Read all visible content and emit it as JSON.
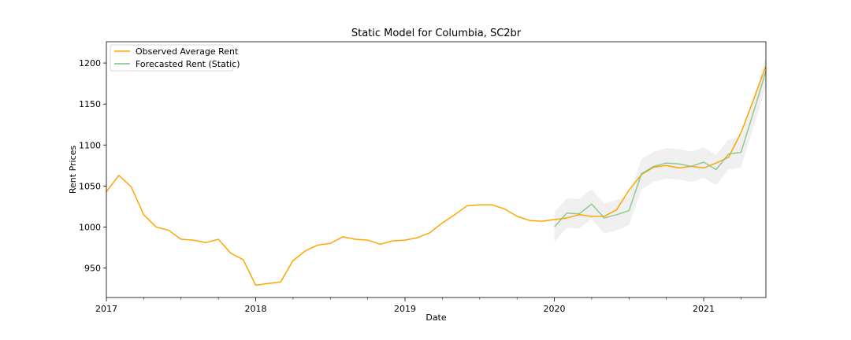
{
  "chart_data": {
    "type": "line",
    "title": "Static Model for Columbia, SC2br",
    "xlabel": "Date",
    "ylabel": "Rent Prices",
    "xlim": [
      "2017-01",
      "2021-06"
    ],
    "ylim": [
      914,
      1226
    ],
    "y_ticks": [
      950,
      1000,
      1050,
      1100,
      1150,
      1200
    ],
    "x_ticks": [
      {
        "date": "2017-01",
        "label": "2017"
      },
      {
        "date": "2018-01",
        "label": "2018"
      },
      {
        "date": "2019-01",
        "label": "2019"
      },
      {
        "date": "2020-01",
        "label": "2020"
      },
      {
        "date": "2021-01",
        "label": "2021"
      }
    ],
    "grid": false,
    "legend_position": "top-left",
    "colors": {
      "observed": "#FFA500",
      "forecast": "#7FC17F",
      "confidence_band": "#CCCCCC"
    },
    "series": [
      {
        "name": "Observed Average Rent",
        "role": "observed",
        "x": [
          "2017-01",
          "2017-02",
          "2017-03",
          "2017-04",
          "2017-05",
          "2017-06",
          "2017-07",
          "2017-08",
          "2017-09",
          "2017-10",
          "2017-11",
          "2017-12",
          "2018-01",
          "2018-02",
          "2018-03",
          "2018-04",
          "2018-05",
          "2018-06",
          "2018-07",
          "2018-08",
          "2018-09",
          "2018-10",
          "2018-11",
          "2018-12",
          "2019-01",
          "2019-02",
          "2019-03",
          "2019-04",
          "2019-05",
          "2019-06",
          "2019-07",
          "2019-08",
          "2019-09",
          "2019-10",
          "2019-11",
          "2019-12",
          "2020-01",
          "2020-02",
          "2020-03",
          "2020-04",
          "2020-05",
          "2020-06",
          "2020-07",
          "2020-08",
          "2020-09",
          "2020-10",
          "2020-11",
          "2020-12",
          "2021-01",
          "2021-02",
          "2021-03",
          "2021-04",
          "2021-05",
          "2021-06"
        ],
        "values": [
          1043,
          1063,
          1049,
          1015,
          1000,
          996,
          985,
          984,
          981,
          985,
          968,
          960,
          929,
          931,
          933,
          959,
          971,
          978,
          980,
          988,
          985,
          984,
          979,
          983,
          984,
          987,
          993,
          1005,
          1015,
          1026,
          1027,
          1027,
          1022,
          1013,
          1008,
          1007,
          1009,
          1011,
          1015,
          1013,
          1013,
          1021,
          1045,
          1064,
          1073,
          1075,
          1072,
          1074,
          1072,
          1078,
          1085,
          1115,
          1155,
          1196
        ]
      },
      {
        "name": "Forecasted Rent (Static)",
        "role": "forecast",
        "x": [
          "2020-01",
          "2020-02",
          "2020-03",
          "2020-04",
          "2020-05",
          "2020-06",
          "2020-07",
          "2020-08",
          "2020-09",
          "2020-10",
          "2020-11",
          "2020-12",
          "2021-01",
          "2021-02",
          "2021-03",
          "2021-04",
          "2021-05",
          "2021-06"
        ],
        "values": [
          1000,
          1017,
          1016,
          1028,
          1011,
          1015,
          1020,
          1065,
          1074,
          1078,
          1077,
          1074,
          1079,
          1070,
          1089,
          1091,
          1140,
          1190
        ],
        "lower": [
          982,
          999,
          998,
          1010,
          992,
          996,
          1002,
          1046,
          1055,
          1059,
          1058,
          1055,
          1060,
          1051,
          1070,
          1073,
          1121,
          1171
        ],
        "upper": [
          1018,
          1035,
          1034,
          1046,
          1029,
          1033,
          1038,
          1083,
          1092,
          1096,
          1095,
          1092,
          1097,
          1088,
          1107,
          1110,
          1158,
          1208
        ]
      }
    ]
  }
}
